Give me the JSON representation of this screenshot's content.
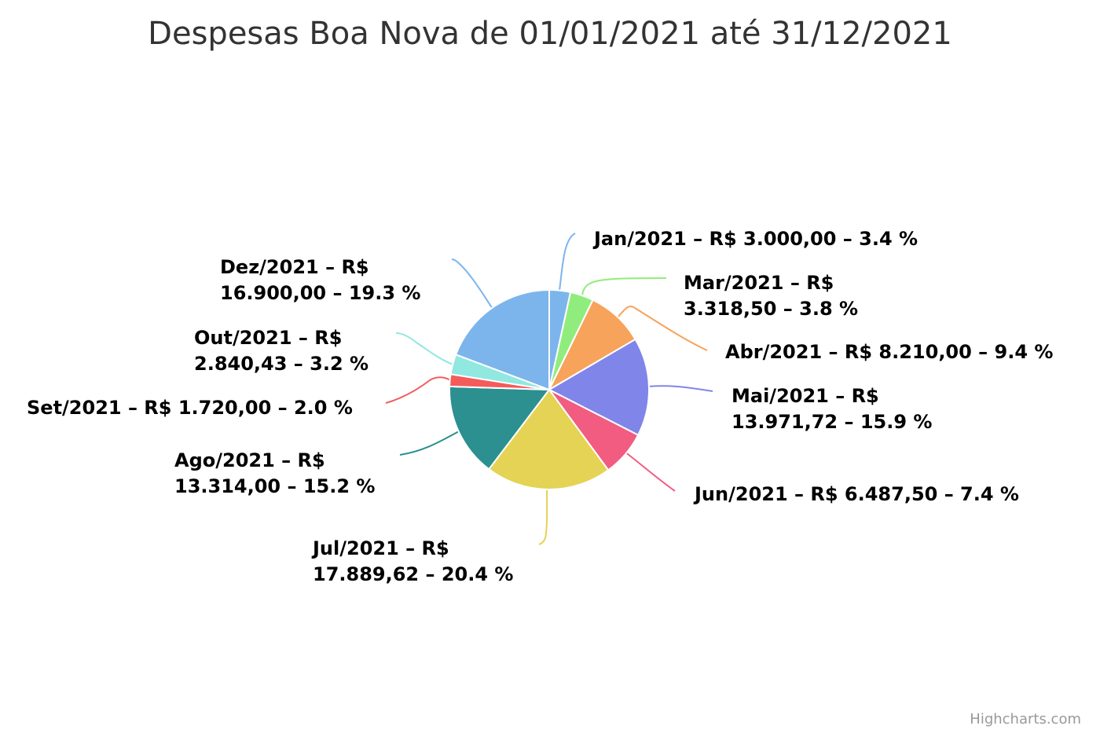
{
  "chart_data": {
    "type": "pie",
    "title": "Despesas Boa Nova de 01/01/2021 até 31/12/2021",
    "slices": [
      {
        "name": "Jan/2021",
        "value": 3000.0,
        "value_label": "R$ 3.000,00",
        "percent": 3.4,
        "percent_label": "3.4 %",
        "color": "#7cb5ec"
      },
      {
        "name": "Mar/2021",
        "value": 3318.5,
        "value_label": "R$ 3.318,50",
        "percent": 3.8,
        "percent_label": "3.8 %",
        "color": "#90ed7d"
      },
      {
        "name": "Abr/2021",
        "value": 8210.0,
        "value_label": "R$ 8.210,00",
        "percent": 9.4,
        "percent_label": "9.4 %",
        "color": "#f7a35c"
      },
      {
        "name": "Mai/2021",
        "value": 13971.72,
        "value_label": "R$ 13.971,72",
        "percent": 15.9,
        "percent_label": "15.9 %",
        "color": "#8085e9"
      },
      {
        "name": "Jun/2021",
        "value": 6487.5,
        "value_label": "R$ 6.487,50",
        "percent": 7.4,
        "percent_label": "7.4 %",
        "color": "#f15c80"
      },
      {
        "name": "Jul/2021",
        "value": 17889.62,
        "value_label": "R$ 17.889,62",
        "percent": 20.4,
        "percent_label": "20.4 %",
        "color": "#e4d354"
      },
      {
        "name": "Ago/2021",
        "value": 13314.0,
        "value_label": "R$ 13.314,00",
        "percent": 15.2,
        "percent_label": "15.2 %",
        "color": "#2b908f"
      },
      {
        "name": "Set/2021",
        "value": 1720.0,
        "value_label": "R$ 1.720,00",
        "percent": 2.0,
        "percent_label": "2.0 %",
        "color": "#f45b5b"
      },
      {
        "name": "Out/2021",
        "value": 2840.43,
        "value_label": "R$ 2.840,43",
        "percent": 3.2,
        "percent_label": "3.2 %",
        "color": "#91e8e1"
      },
      {
        "name": "Dez/2021",
        "value": 16900.0,
        "value_label": "R$ 16.900,00",
        "percent": 19.3,
        "percent_label": "19.3 %",
        "color": "#7cb5ec"
      }
    ]
  },
  "credits": "Highcharts.com"
}
